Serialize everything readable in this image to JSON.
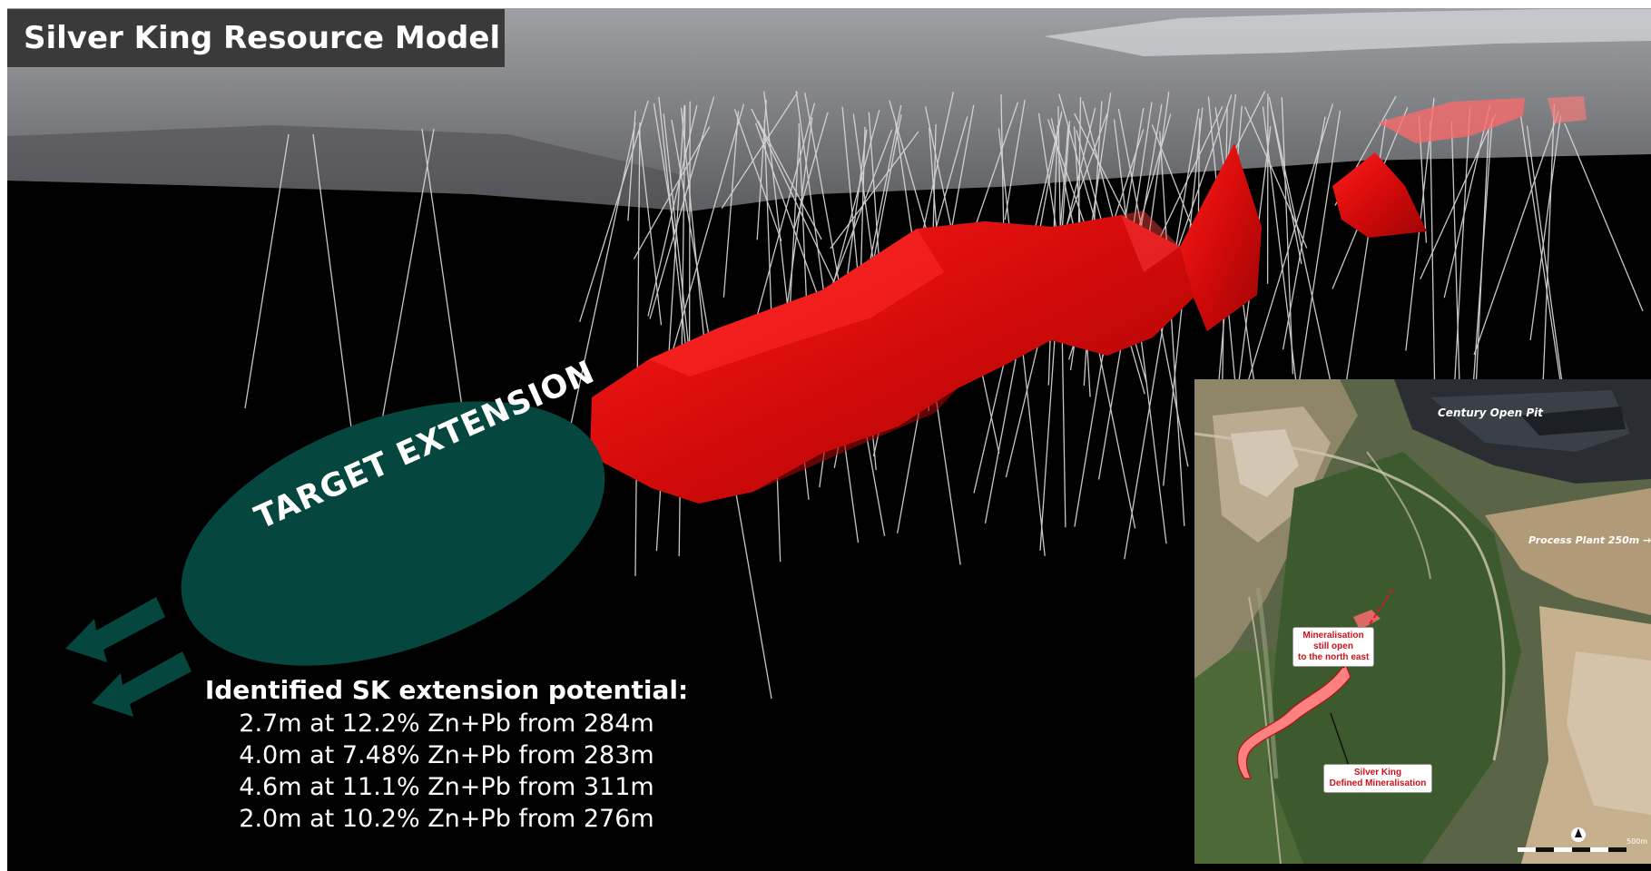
{
  "title": "Silver King Resource Model",
  "target": {
    "label": "TARGET EXTENSION"
  },
  "extension": {
    "heading": "Identified SK extension potential:",
    "intercepts": [
      "2.7m at 12.2% Zn+Pb from 284m",
      "4.0m at 7.48% Zn+Pb from 283m",
      "4.6m at 11.1% Zn+Pb from 311m",
      "2.0m at 10.2% Zn+Pb from 276m"
    ]
  },
  "inset_map": {
    "pit_label": "Century Open Pit",
    "plant_label": "Process Plant 250m →",
    "open_callout": [
      "Mineralisation",
      "still open",
      "to the north east"
    ],
    "defined_callout": [
      "Silver King",
      "Defined Mineralisation"
    ],
    "scale_label": "500m",
    "north_symbol": "▲"
  },
  "colors": {
    "background": "#000000",
    "surface": "#8c8d91",
    "orebody": "#d80d0d",
    "target_ellipse": "#05463f",
    "title_box": "#3a3a3a",
    "drillhole": "#d9d9d9"
  },
  "icons": [
    "north-arrow-icon",
    "scale-bar-icon",
    "direction-arrow-icon"
  ]
}
